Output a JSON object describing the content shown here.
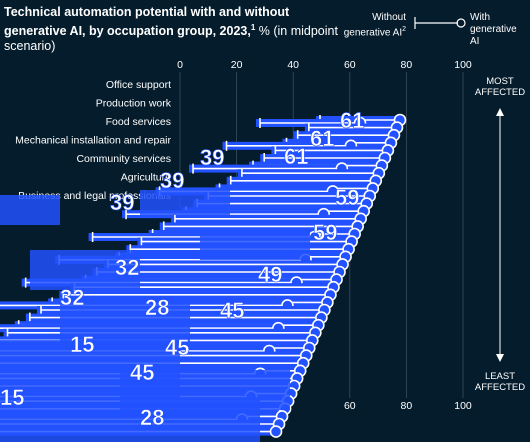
{
  "title": {
    "bold": "Technical automation potential with and without generative AI, by occupation group, 2023,",
    "superscript": "1",
    "rest": " % (in midpoint scenario)"
  },
  "legend": {
    "without_label": "Without generative AI",
    "without_superscript": "2",
    "with_label": "With generative AI"
  },
  "side_labels": {
    "top": [
      "MOST",
      "AFFECTED"
    ],
    "bottom": [
      "LEAST",
      "AFFECTED"
    ]
  },
  "colors": {
    "background": "#051c2c",
    "accent": "#2251ff",
    "text": "#ffffff",
    "grid": "#3a4d5c"
  },
  "chart_data": {
    "type": "dumbbell",
    "axis_ticks": [
      0,
      20,
      40,
      60,
      80,
      100
    ],
    "xlim": [
      0,
      100
    ],
    "categories": [
      "Office support",
      "Production work",
      "Food services",
      "Mechanical installation and repair",
      "Community services",
      "Agriculture",
      "Business and legal professionals"
    ],
    "visible_value_labels": [
      "61",
      "61",
      "61",
      "59",
      "59",
      "49",
      "45",
      "45",
      "45",
      "39",
      "39",
      "39",
      "32",
      "32",
      "28",
      "28",
      "15",
      "15"
    ],
    "visible_axis_labels_bottom": [
      "60",
      "80",
      "100"
    ]
  }
}
